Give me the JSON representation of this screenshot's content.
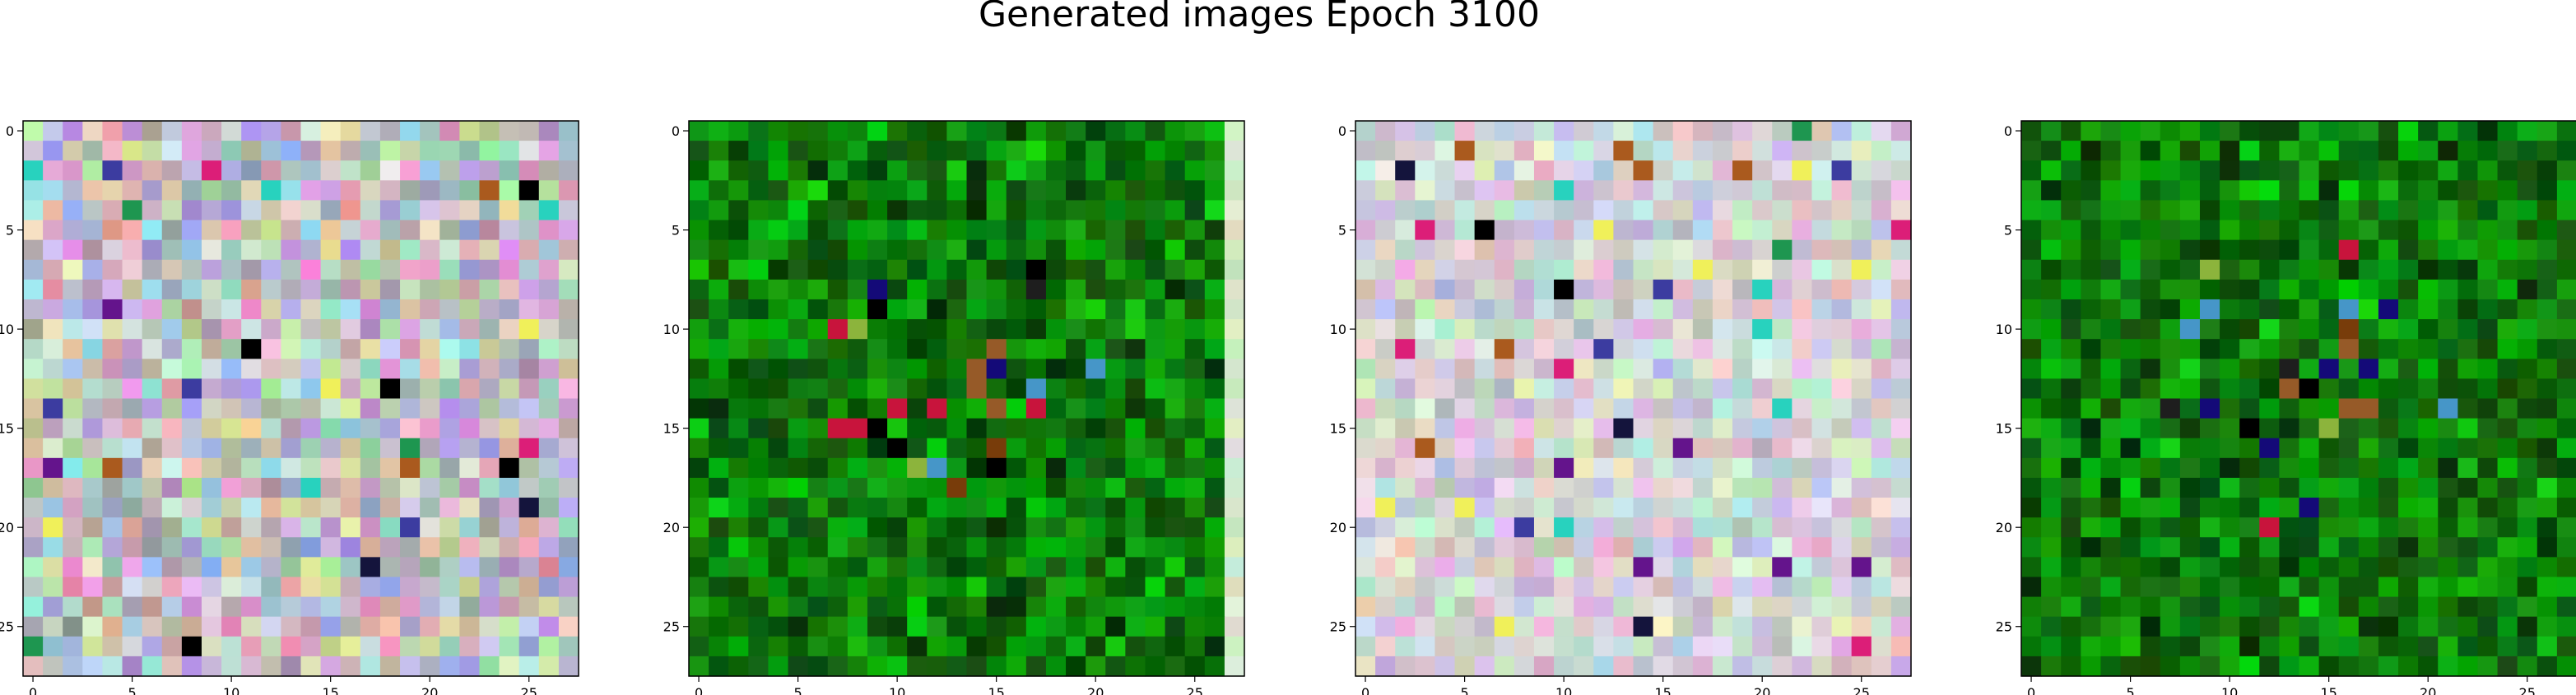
{
  "title": "Generated images Epoch 3100",
  "chart_data": [
    {
      "type": "heatmap",
      "grid": [
        28,
        28
      ],
      "palette": "pastel-noise",
      "xticks": [
        0,
        5,
        10,
        15,
        20,
        25
      ],
      "yticks": [
        0,
        5,
        10,
        15,
        20,
        25
      ],
      "xlim": [
        -0.5,
        27.5
      ],
      "ylim": [
        27.5,
        -0.5
      ],
      "grid_lines": false
    },
    {
      "type": "heatmap",
      "grid": [
        28,
        28
      ],
      "palette": "green-noise",
      "right_column_palette": "light-green",
      "xticks": [
        0,
        5,
        10,
        15,
        20,
        25
      ],
      "yticks": [
        0,
        5,
        10,
        15,
        20,
        25
      ],
      "xlim": [
        -0.5,
        27.5
      ],
      "ylim": [
        27.5,
        -0.5
      ],
      "grid_lines": false
    },
    {
      "type": "heatmap",
      "grid": [
        28,
        28
      ],
      "palette": "pastel-noise-light",
      "xticks": [
        0,
        5,
        10,
        15,
        20,
        25
      ],
      "yticks": [
        0,
        5,
        10,
        15,
        20,
        25
      ],
      "xlim": [
        -0.5,
        27.5
      ],
      "ylim": [
        27.5,
        -0.5
      ],
      "grid_lines": false
    },
    {
      "type": "heatmap",
      "grid": [
        28,
        28
      ],
      "palette": "green-noise",
      "xticks": [
        0,
        5,
        10,
        15,
        20,
        25
      ],
      "yticks": [
        0,
        5,
        10,
        15,
        20,
        25
      ],
      "xlim": [
        -0.5,
        27.5
      ],
      "ylim": [
        27.5,
        -0.5
      ],
      "grid_lines": false
    }
  ]
}
